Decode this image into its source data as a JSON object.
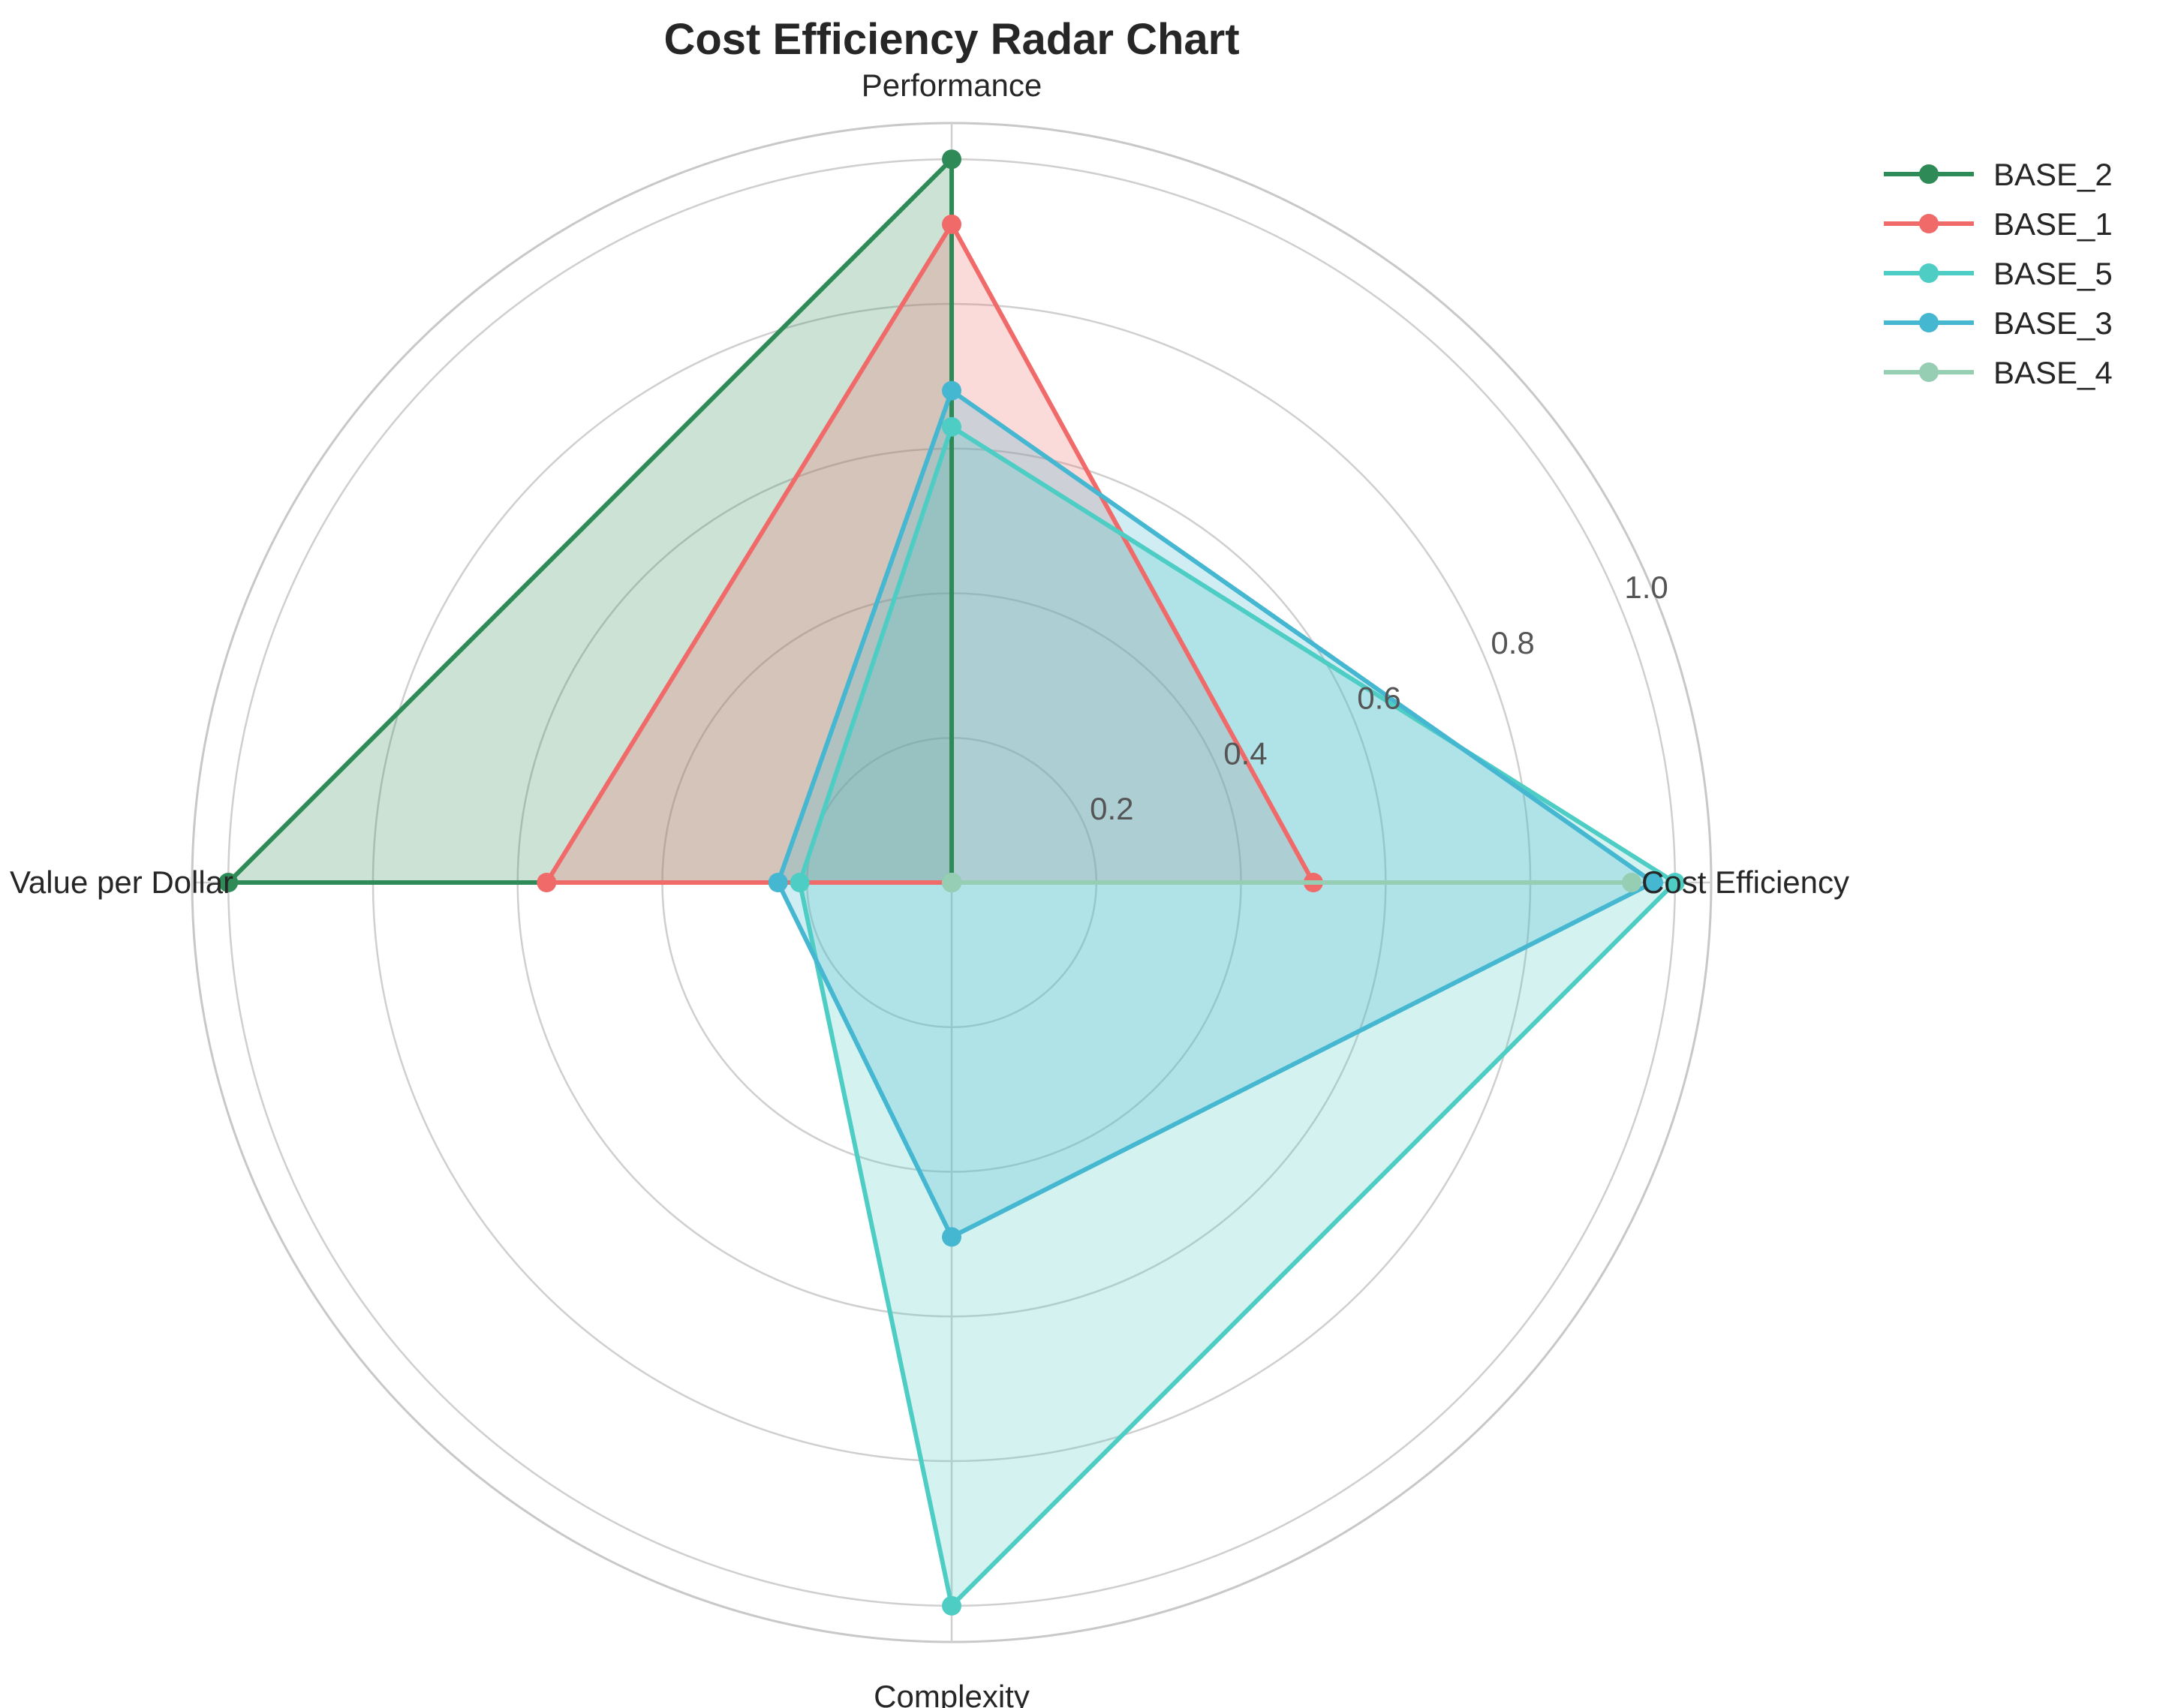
{
  "chart_data": {
    "type": "radar",
    "title": "Cost Efficiency Radar Chart",
    "axes": [
      "Performance",
      "Cost Efficiency",
      "Complexity",
      "Value per Dollar"
    ],
    "rlim": [
      0,
      1.05
    ],
    "r_ticks": [
      0.2,
      0.4,
      0.6,
      0.8,
      1.0
    ],
    "r_tick_labels": [
      "0.2",
      "0.4",
      "0.6",
      "0.8",
      "1.0"
    ],
    "grid": true,
    "legend_position": "top-right, outside plot",
    "series": [
      {
        "name": "BASE_2",
        "color": "#2e8b57",
        "values": [
          1.0,
          0.0,
          0.0,
          1.0
        ]
      },
      {
        "name": "BASE_1",
        "color": "#f06a6a",
        "values": [
          0.91,
          0.5,
          0.0,
          0.56
        ]
      },
      {
        "name": "BASE_5",
        "color": "#4ecdc4",
        "values": [
          0.63,
          1.0,
          1.0,
          0.21
        ]
      },
      {
        "name": "BASE_3",
        "color": "#45b7d1",
        "values": [
          0.68,
          0.97,
          0.49,
          0.24
        ]
      },
      {
        "name": "BASE_4",
        "color": "#96ceb4",
        "values": [
          0.0,
          0.94,
          0.0,
          0.0
        ]
      }
    ]
  }
}
